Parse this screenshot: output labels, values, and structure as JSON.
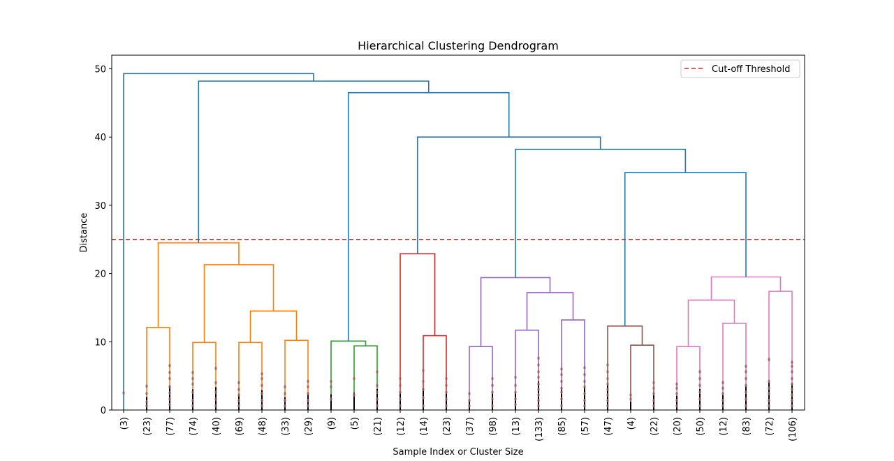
{
  "chart_data": {
    "type": "dendrogram",
    "title": "Hierarchical Clustering Dendrogram",
    "xlabel": "Sample Index or Cluster Size",
    "ylabel": "Distance",
    "ylim": [
      0,
      52
    ],
    "yticks": [
      0,
      10,
      20,
      30,
      40,
      50
    ],
    "grid": false,
    "legend": {
      "position": "top-right",
      "entries": [
        {
          "label": "Cut-off Threshold",
          "color": "#d62728",
          "style": "dashed"
        }
      ]
    },
    "threshold": 25,
    "leaves": [
      "(3)",
      "(23)",
      "(77)",
      "(74)",
      "(40)",
      "(69)",
      "(48)",
      "(33)",
      "(29)",
      "(9)",
      "(5)",
      "(21)",
      "(12)",
      "(14)",
      "(23)",
      "(37)",
      "(98)",
      "(13)",
      "(133)",
      "(85)",
      "(57)",
      "(47)",
      "(4)",
      "(22)",
      "(20)",
      "(50)",
      "(12)",
      "(83)",
      "(72)",
      "(106)"
    ],
    "merges": [
      {
        "id": "n1",
        "left": "L1",
        "right": "L2",
        "height": 12.1,
        "color": "#ff7f0e"
      },
      {
        "id": "n2",
        "left": "L3",
        "right": "L4",
        "height": 9.9,
        "color": "#ff7f0e"
      },
      {
        "id": "n3",
        "left": "L5",
        "right": "L6",
        "height": 9.9,
        "color": "#ff7f0e"
      },
      {
        "id": "n4",
        "left": "L7",
        "right": "L8",
        "height": 10.2,
        "color": "#ff7f0e"
      },
      {
        "id": "n5",
        "left": "n3",
        "right": "n4",
        "height": 14.5,
        "color": "#ff7f0e"
      },
      {
        "id": "n6",
        "left": "n2",
        "right": "n5",
        "height": 21.3,
        "color": "#ff7f0e"
      },
      {
        "id": "n7",
        "left": "n1",
        "right": "n6",
        "height": 24.5,
        "color": "#ff7f0e"
      },
      {
        "id": "n8",
        "left": "L10",
        "right": "L11",
        "height": 9.4,
        "color": "#2ca02c"
      },
      {
        "id": "n9",
        "left": "L9",
        "right": "n8",
        "height": 10.1,
        "color": "#2ca02c"
      },
      {
        "id": "n10",
        "left": "L13",
        "right": "L14",
        "height": 10.9,
        "color": "#d62728"
      },
      {
        "id": "n11",
        "left": "L12",
        "right": "n10",
        "height": 22.9,
        "color": "#d62728"
      },
      {
        "id": "n12",
        "left": "L15",
        "right": "L16",
        "height": 9.3,
        "color": "#9467bd"
      },
      {
        "id": "n13",
        "left": "L17",
        "right": "L18",
        "height": 11.7,
        "color": "#9467bd"
      },
      {
        "id": "n14",
        "left": "L19",
        "right": "L20",
        "height": 13.2,
        "color": "#9467bd"
      },
      {
        "id": "n15",
        "left": "n13",
        "right": "n14",
        "height": 17.2,
        "color": "#9467bd"
      },
      {
        "id": "n16",
        "left": "n12",
        "right": "n15",
        "height": 19.4,
        "color": "#9467bd"
      },
      {
        "id": "n17",
        "left": "L22",
        "right": "L23",
        "height": 9.5,
        "color": "#8c564b"
      },
      {
        "id": "n18",
        "left": "L21",
        "right": "n17",
        "height": 12.3,
        "color": "#8c564b"
      },
      {
        "id": "n19",
        "left": "L24",
        "right": "L25",
        "height": 9.3,
        "color": "#e377c2"
      },
      {
        "id": "n20",
        "left": "L26",
        "right": "L27",
        "height": 12.7,
        "color": "#e377c2"
      },
      {
        "id": "n21",
        "left": "n19",
        "right": "n20",
        "height": 16.1,
        "color": "#e377c2"
      },
      {
        "id": "n22",
        "left": "L28",
        "right": "L29",
        "height": 17.4,
        "color": "#e377c2"
      },
      {
        "id": "n23",
        "left": "n21",
        "right": "n22",
        "height": 19.5,
        "color": "#e377c2"
      },
      {
        "id": "n24",
        "left": "n18",
        "right": "n23",
        "height": 34.8,
        "color": "#1f77b4"
      },
      {
        "id": "n25",
        "left": "n16",
        "right": "n24",
        "height": 38.2,
        "color": "#1f77b4"
      },
      {
        "id": "n26",
        "left": "n11",
        "right": "n25",
        "height": 40.0,
        "color": "#1f77b4"
      },
      {
        "id": "n27",
        "left": "n9",
        "right": "n26",
        "height": 46.5,
        "color": "#1f77b4"
      },
      {
        "id": "n28",
        "left": "n7",
        "right": "n27",
        "height": 48.2,
        "color": "#1f77b4"
      },
      {
        "id": "n29",
        "left": "L0",
        "right": "n28",
        "height": 49.3,
        "color": "#1f77b4"
      }
    ],
    "leaf_point_heights": [
      [
        2.5
      ],
      [
        0.6,
        1.2,
        2.4,
        3.5
      ],
      [
        0.8,
        1.6,
        2.5,
        3.4,
        4.6,
        5.5,
        6.5
      ],
      [
        0.6,
        1.4,
        2.6,
        3.8,
        4.6,
        5.5
      ],
      [
        0.6,
        1.6,
        2.6,
        4.0,
        6.1
      ],
      [
        0.6,
        1.4,
        2.2,
        3.0,
        4.0
      ],
      [
        0.6,
        1.4,
        2.4,
        3.6,
        4.6,
        5.3
      ],
      [
        0.6,
        1.4,
        2.4,
        3.4
      ],
      [
        0.6,
        1.4,
        2.4,
        3.4,
        4.2
      ],
      [
        1.6,
        3.4,
        4.2
      ],
      [
        2.2,
        4.6
      ],
      [
        0.6,
        1.6,
        2.6,
        3.6,
        5.6
      ],
      [
        0.6,
        1.6,
        2.6,
        3.6,
        4.6
      ],
      [
        0.6,
        1.8,
        3.0,
        4.2,
        5.8
      ],
      [
        0.6,
        1.6,
        2.6,
        3.6,
        4.6
      ],
      [
        0.6,
        1.4,
        2.4
      ],
      [
        0.6,
        1.6,
        2.6,
        3.6,
        4.6
      ],
      [
        0.8,
        1.6,
        2.6,
        3.6,
        4.8
      ],
      [
        0.6,
        1.4,
        2.2,
        3.0,
        3.8,
        4.8,
        5.6,
        6.6,
        7.6
      ],
      [
        0.6,
        1.6,
        2.6,
        3.2,
        4.2,
        5.2,
        6.0
      ],
      [
        0.6,
        1.4,
        2.4,
        3.4,
        4.2,
        5.2,
        6.2
      ],
      [
        0.6,
        1.4,
        2.2,
        3.0,
        3.8,
        4.6,
        5.6,
        6.6
      ],
      [
        1.6,
        2.2
      ],
      [
        0.6,
        1.4,
        2.4,
        3.2,
        4.0
      ],
      [
        0.6,
        1.4,
        2.4,
        3.2,
        3.8
      ],
      [
        0.6,
        1.6,
        2.6,
        3.6,
        4.6,
        5.6
      ],
      [
        0.6,
        1.4,
        2.4,
        3.2,
        4.0
      ],
      [
        0.6,
        1.6,
        2.6,
        3.6,
        4.6,
        5.6,
        6.4
      ],
      [
        0.6,
        1.4,
        2.4,
        3.2,
        4.2,
        7.4
      ],
      [
        0.6,
        1.4,
        2.2,
        3.0,
        3.8,
        4.6,
        5.6,
        6.4,
        7.0
      ]
    ]
  }
}
